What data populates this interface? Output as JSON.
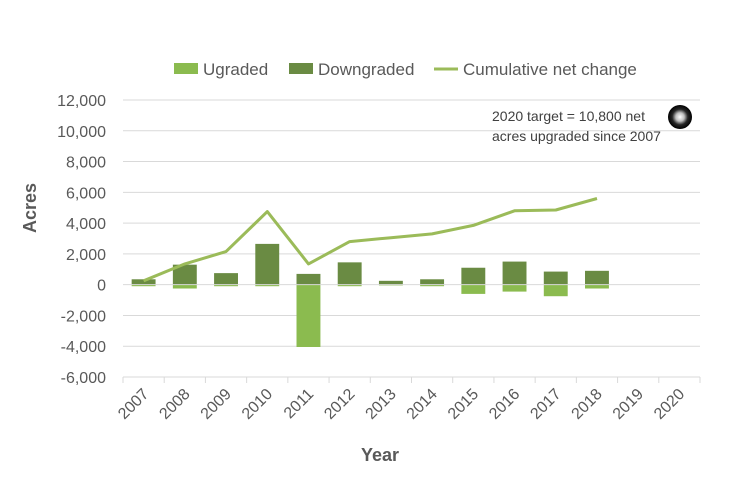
{
  "chart_data": {
    "type": "bar",
    "title": "",
    "xlabel": "Year",
    "ylabel": "Acres",
    "categories": [
      "2007",
      "2008",
      "2009",
      "2010",
      "2011",
      "2012",
      "2013",
      "2014",
      "2015",
      "2016",
      "2017",
      "2018",
      "2019",
      "2020"
    ],
    "ylim": [
      -6000,
      12000
    ],
    "yticks": [
      -6000,
      -4000,
      -2000,
      0,
      2000,
      4000,
      6000,
      8000,
      10000,
      12000
    ],
    "ytick_labels": [
      "-6,000",
      "-4,000",
      "-2,000",
      "0",
      "2,000",
      "4,000",
      "6,000",
      "8,000",
      "10,000",
      "12,000"
    ],
    "grid": true,
    "legend_position": "top",
    "series": [
      {
        "name": "Ugraded",
        "kind": "bar",
        "color": "#8bbb4f",
        "values": [
          -100,
          -250,
          -100,
          -100,
          -4050,
          -100,
          -50,
          -100,
          -600,
          -450,
          -750,
          -250,
          null,
          null
        ]
      },
      {
        "name": "Downgraded",
        "kind": "bar",
        "color": "#6a8b43",
        "values": [
          350,
          1300,
          750,
          2650,
          700,
          1450,
          250,
          350,
          1100,
          1500,
          850,
          900,
          null,
          null
        ]
      },
      {
        "name": "Cumulative net change",
        "kind": "line",
        "color": "#9bbb59",
        "values": [
          250,
          1350,
          2150,
          4750,
          1350,
          2800,
          3050,
          3300,
          3850,
          4800,
          4850,
          5600,
          null,
          null
        ]
      }
    ],
    "annotation": {
      "lines": [
        "2020 target = 10,800 net",
        "acres upgraded since 2007"
      ]
    }
  }
}
